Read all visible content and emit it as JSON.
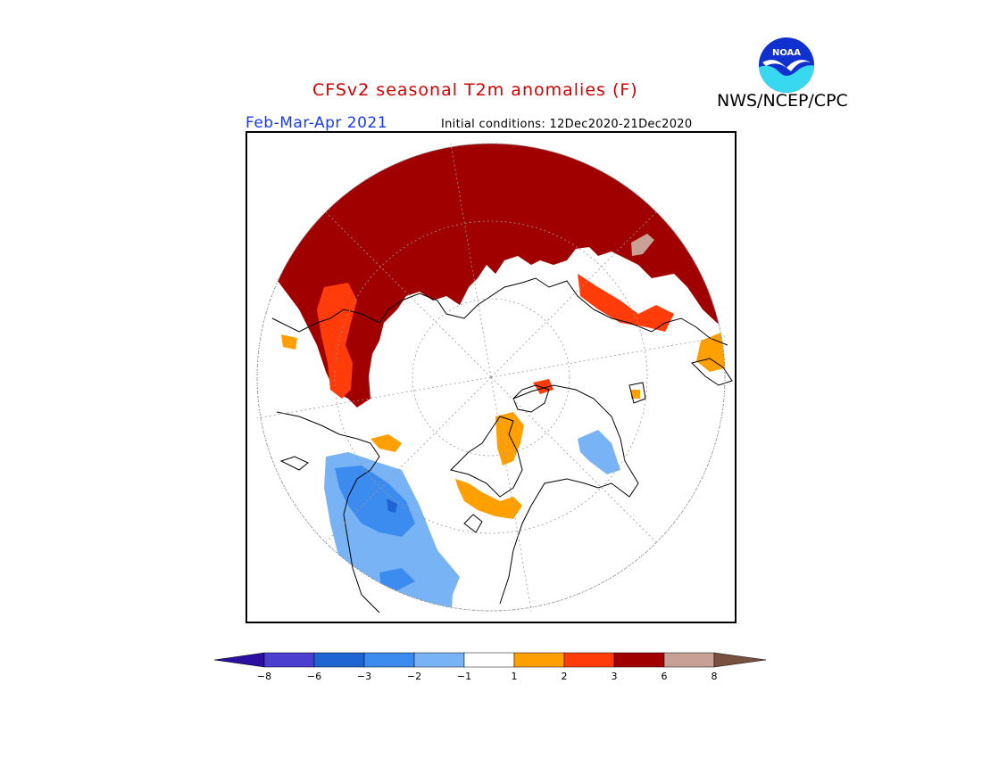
{
  "header": {
    "title": "CFSv2 seasonal T2m anomalies (F)",
    "agency": "NWS/NCEP/CPC",
    "period": "Feb-Mar-Apr 2021",
    "initial_conditions": "Initial conditions: 12Dec2020-21Dec2020",
    "logo_text": "NOAA"
  },
  "legend": {
    "labels": [
      "−8",
      "−6",
      "−3",
      "−2",
      "−1",
      "1",
      "2",
      "3",
      "6",
      "8"
    ],
    "bins": [
      {
        "color": "#2a0fa0",
        "range": "< -8"
      },
      {
        "color": "#4b3fd0",
        "range": "-8 to -6"
      },
      {
        "color": "#1e64d2",
        "range": "-6 to -3"
      },
      {
        "color": "#3c8cf0",
        "range": "-3 to -2"
      },
      {
        "color": "#78b4f5",
        "range": "-2 to -1"
      },
      {
        "color": "#ffffff",
        "range": "-1 to 1"
      },
      {
        "color": "#ffa000",
        "range": "1 to 2"
      },
      {
        "color": "#ff3c0a",
        "range": "2 to 3"
      },
      {
        "color": "#a00000",
        "range": "3 to 6"
      },
      {
        "color": "#c8a096",
        "range": "6 to 8"
      },
      {
        "color": "#7a5040",
        "range": "> 8"
      }
    ]
  },
  "map": {
    "projection": "north-polar-stereographic",
    "colors": {
      "strong_warm": "#a00000",
      "warm": "#ff3c0a",
      "mild_warm": "#ffa000",
      "hot": "#c8a096",
      "cool": "#78b4f5",
      "cold": "#3c8cf0",
      "very_cold": "#1e64d2",
      "coast": "#000000",
      "grid": "#999999"
    }
  }
}
